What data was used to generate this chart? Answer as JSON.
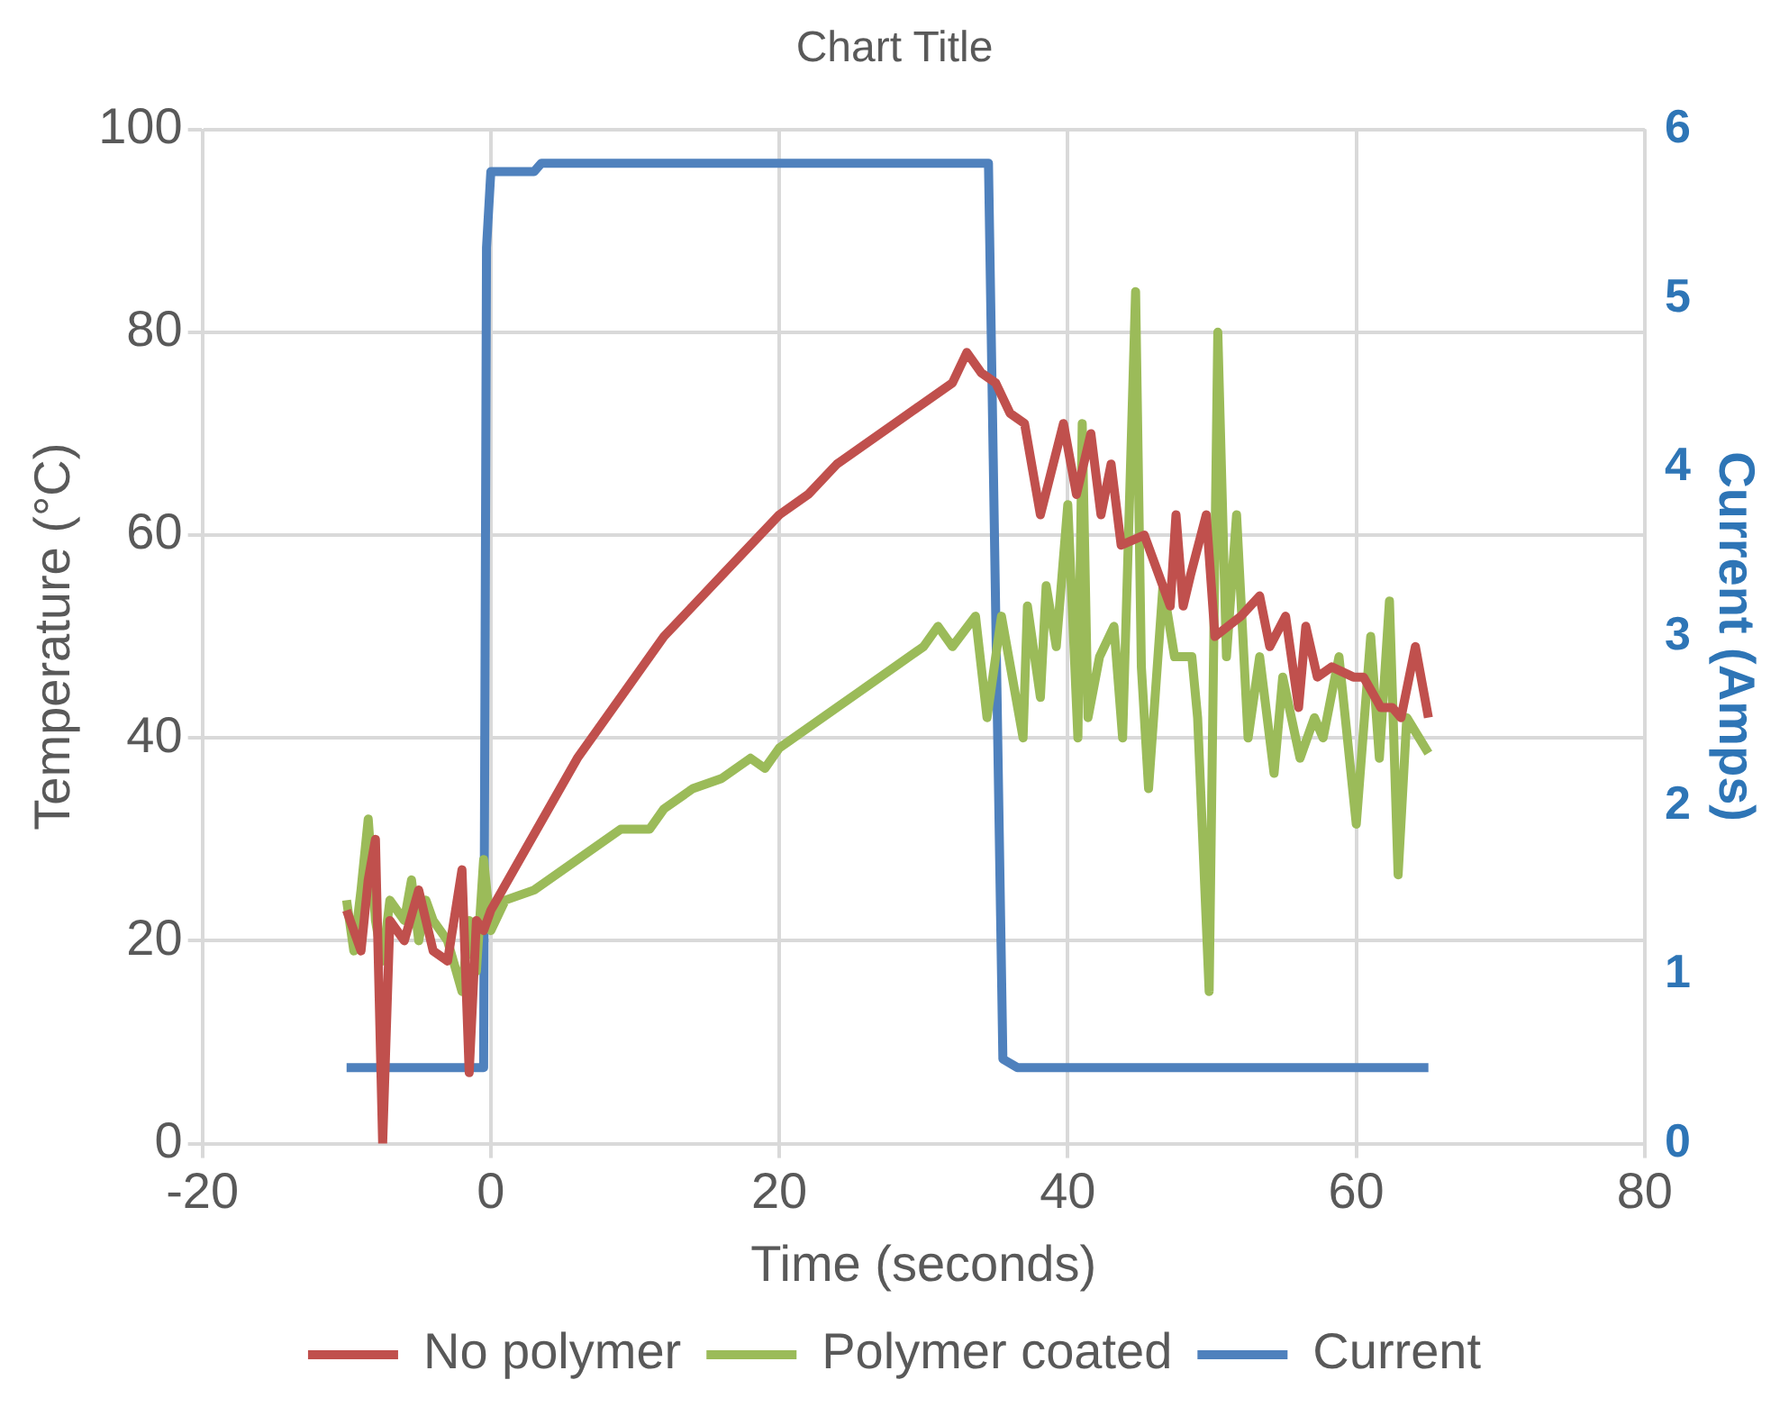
{
  "chart_data": {
    "type": "line",
    "title": "Chart Title",
    "xlabel": "Time (seconds)",
    "ylabel": "Temperature (°C)",
    "y2label": "Current (Amps)",
    "xlim": [
      -20,
      80
    ],
    "xticks": [
      -20,
      0,
      20,
      40,
      60,
      80
    ],
    "ylim": [
      0,
      100
    ],
    "yticks": [
      0,
      20,
      40,
      60,
      80,
      100
    ],
    "y2lim": [
      0,
      6
    ],
    "y2ticks": [
      0,
      1,
      2,
      3,
      4,
      5,
      6
    ],
    "grid": true,
    "legend": "bottom",
    "marker": "none",
    "line_style": "solid",
    "series": [
      {
        "name": "No polymer",
        "color": "#c0504d",
        "x": [
          -10,
          -9,
          -8.5,
          -8,
          -7.5,
          -7,
          -6,
          -5,
          -4,
          -3,
          -2,
          -1.5,
          -1,
          -0.5,
          0,
          2,
          4,
          6,
          8,
          10,
          12,
          14,
          16,
          18,
          20,
          22,
          24,
          26,
          28,
          30,
          32,
          33,
          34,
          35,
          36,
          37,
          38.1,
          39.7,
          40.6,
          41.6,
          42.3,
          43,
          43.7,
          45.3,
          47.1,
          47.5,
          48,
          48.5,
          49.6,
          50.2,
          52,
          53.3,
          54,
          55.1,
          56,
          56.5,
          57.3,
          58.3,
          59.8,
          60.5,
          61.7,
          62.5,
          63.1,
          64.1,
          65
        ],
        "values": [
          23,
          19,
          26,
          30,
          0,
          22,
          20,
          25,
          19,
          18,
          27,
          7,
          22,
          21,
          23,
          28,
          33,
          38,
          42,
          46,
          50,
          53,
          56,
          59,
          62,
          64,
          67,
          69,
          71,
          73,
          75,
          78,
          76,
          75,
          72,
          71,
          62,
          71,
          64,
          70,
          62,
          67,
          59,
          60,
          53,
          62,
          53,
          56,
          62,
          50,
          52,
          54,
          49,
          52,
          43,
          51,
          46,
          47,
          46,
          46,
          43,
          43,
          42,
          49,
          42
        ]
      },
      {
        "name": "Polymer coated",
        "color": "#9bbb59",
        "x": [
          -10,
          -9.5,
          -9,
          -8.5,
          -8,
          -7.5,
          -7,
          -6,
          -5.5,
          -5,
          -4.5,
          -4,
          -3,
          -2,
          -1.5,
          -1,
          -0.5,
          0,
          1,
          3,
          5,
          7,
          9,
          11,
          12,
          14,
          16,
          18,
          19,
          20,
          22,
          24,
          26,
          28,
          30,
          31,
          32,
          33.6,
          34.4,
          35.4,
          36.9,
          37.2,
          38.1,
          38.5,
          39.2,
          40,
          40.7,
          41,
          41.4,
          42.2,
          43.2,
          43.8,
          44.7,
          45.1,
          45.6,
          46.6,
          47.4,
          48.6,
          49,
          49.8,
          50.4,
          51,
          51.7,
          52.5,
          53.3,
          54.3,
          54.9,
          56.1,
          57.1,
          57.7,
          58.8,
          60,
          61,
          61.6,
          62.3,
          62.9,
          63.5,
          65
        ],
        "values": [
          24,
          19,
          25,
          32,
          22,
          18,
          24,
          22,
          26,
          20,
          24,
          22,
          20,
          15,
          22,
          17,
          28,
          21,
          24,
          25,
          27,
          29,
          31,
          31,
          33,
          35,
          36,
          38,
          37,
          39,
          41,
          43,
          45,
          47,
          49,
          51,
          49,
          52,
          42,
          52,
          40,
          53,
          44,
          55,
          49,
          63,
          40,
          71,
          42,
          48,
          51,
          40,
          84,
          47,
          35,
          55,
          48,
          48,
          42,
          15,
          80,
          48,
          62,
          40,
          48,
          36.5,
          46,
          38,
          42,
          40,
          48,
          31.5,
          50,
          38,
          53.5,
          26.5,
          42,
          38.5
        ]
      },
      {
        "name": "Current",
        "color": "#4f81bd",
        "axis": "y2",
        "x": [
          -10,
          -0.5,
          -0.3,
          0,
          3,
          3.5,
          34.5,
          35.5,
          36.5,
          65
        ],
        "values": [
          0.45,
          0.45,
          5.3,
          5.75,
          5.75,
          5.8,
          5.8,
          0.5,
          0.45,
          0.45
        ]
      }
    ]
  }
}
